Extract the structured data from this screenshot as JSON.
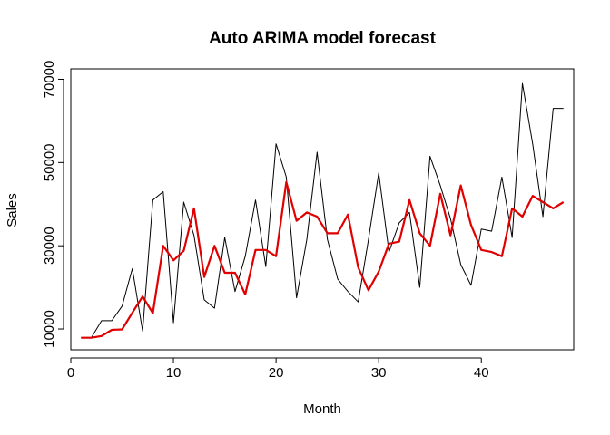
{
  "chart_data": {
    "type": "line",
    "title": "Auto ARIMA model forecast",
    "xlabel": "Month",
    "ylabel": "Sales",
    "xlim": [
      0,
      49
    ],
    "ylim": [
      5000,
      72500
    ],
    "xticks": [
      0,
      10,
      20,
      30,
      40
    ],
    "yticks": [
      10000,
      30000,
      50000,
      70000
    ],
    "series": [
      {
        "color": "#000000",
        "x": [
          1,
          2,
          3,
          4,
          5,
          6,
          7,
          8,
          9,
          10,
          11,
          12,
          13,
          14,
          15,
          16,
          17,
          18,
          19,
          20,
          21,
          22,
          23,
          24,
          25,
          26,
          27,
          28,
          29,
          30,
          31,
          32,
          33,
          34,
          35,
          36,
          37,
          38,
          39,
          40,
          41,
          42,
          43,
          44,
          45,
          46,
          47,
          48
        ],
        "values": [
          7900,
          7900,
          12000,
          12000,
          15500,
          24500,
          9500,
          41000,
          43000,
          11500,
          40500,
          32500,
          17000,
          15000,
          32000,
          19000,
          27500,
          41000,
          25000,
          54500,
          46500,
          17500,
          31500,
          52500,
          31500,
          22000,
          19000,
          16500,
          31500,
          47500,
          28500,
          35500,
          38000,
          20000,
          51500,
          44500,
          36500,
          25500,
          20500,
          34000,
          33500,
          46500,
          32000,
          69000,
          54500,
          37000,
          63000,
          63000
        ]
      },
      {
        "color": "#e00000",
        "x": [
          1,
          2,
          3,
          4,
          5,
          6,
          7,
          8,
          9,
          10,
          11,
          12,
          13,
          14,
          15,
          16,
          17,
          18,
          19,
          20,
          21,
          22,
          23,
          24,
          25,
          26,
          27,
          28,
          29,
          30,
          31,
          32,
          33,
          34,
          35,
          36,
          37,
          38,
          39,
          40,
          41,
          42,
          43,
          44,
          45,
          46,
          47,
          48
        ],
        "values": [
          7900,
          7900,
          8300,
          9800,
          9900,
          13900,
          17800,
          13800,
          30000,
          26500,
          28800,
          39000,
          22500,
          30000,
          23500,
          23500,
          18300,
          29000,
          29000,
          27500,
          45300,
          36000,
          38000,
          37000,
          33000,
          33000,
          37500,
          24800,
          19300,
          23800,
          30500,
          31000,
          41000,
          33000,
          30000,
          42500,
          32500,
          44500,
          35000,
          29000,
          28500,
          27500,
          39000,
          37000,
          42000,
          40500,
          39000,
          40500
        ]
      }
    ]
  }
}
